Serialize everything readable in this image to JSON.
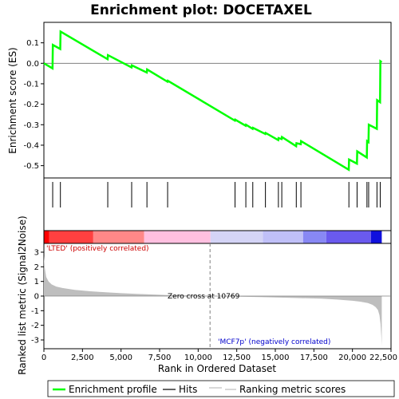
{
  "chart_data": {
    "type": "line",
    "title": "Enrichment plot: DOCETAXEL",
    "xlabel": "Rank in Ordered Dataset",
    "ylabel_top": "Enrichment score (ES)",
    "ylabel_bottom": "Ranked list metric (Signal2Noise)",
    "xlim": [
      0,
      22500
    ],
    "x_ticks": [
      0,
      2500,
      5000,
      7500,
      10000,
      12500,
      15000,
      17500,
      20000,
      22500
    ],
    "x_tick_labels": [
      "0",
      "2,500",
      "5,000",
      "7,500",
      "10,000",
      "12,500",
      "15,000",
      "17,500",
      "20,000",
      "22,500"
    ],
    "es_ylim": [
      -0.56,
      0.2
    ],
    "es_ticks": [
      -0.5,
      -0.4,
      -0.3,
      -0.2,
      -0.1,
      0.0,
      0.1
    ],
    "es_tick_labels": [
      "-0.5",
      "-0.4",
      "-0.3",
      "-0.2",
      "-0.1",
      "0.0",
      "0.1"
    ],
    "metric_ylim": [
      -3.6,
      3.6
    ],
    "metric_ticks": [
      -3,
      -2,
      -1,
      0,
      1,
      2,
      3
    ],
    "metric_tick_labels": [
      "-3",
      "-2",
      "-1",
      "0",
      "1",
      "2",
      "3"
    ],
    "series": [
      {
        "name": "Enrichment profile",
        "color": "#00ff00",
        "x": [
          0,
          560,
          580,
          1060,
          1080,
          4130,
          4150,
          5680,
          5700,
          6670,
          6690,
          8010,
          8030,
          12380,
          12400,
          13080,
          13100,
          13530,
          13550,
          14350,
          14370,
          15190,
          15210,
          15410,
          15430,
          16350,
          16370,
          16650,
          16670,
          19760,
          19780,
          20290,
          20310,
          20930,
          20950,
          21040,
          21060,
          21580,
          21600,
          21790,
          21810,
          21900
        ],
        "y": [
          0.0,
          -0.025,
          0.09,
          0.07,
          0.155,
          0.02,
          0.04,
          -0.02,
          -0.01,
          -0.045,
          -0.03,
          -0.09,
          -0.085,
          -0.28,
          -0.275,
          -0.305,
          -0.3,
          -0.32,
          -0.315,
          -0.345,
          -0.34,
          -0.375,
          -0.365,
          -0.37,
          -0.36,
          -0.405,
          -0.39,
          -0.395,
          -0.38,
          -0.52,
          -0.47,
          -0.49,
          -0.43,
          -0.46,
          -0.38,
          -0.385,
          -0.3,
          -0.32,
          -0.18,
          -0.19,
          0.01,
          0.005
        ]
      },
      {
        "name": "Hits",
        "color": "#000000",
        "hits": [
          570,
          1070,
          4140,
          5690,
          6680,
          8020,
          12390,
          13090,
          13540,
          14360,
          15200,
          15420,
          16360,
          16660,
          19770,
          20300,
          20940,
          21050,
          21590,
          21800
        ]
      },
      {
        "name": "Ranking metric scores",
        "color": "#bebebe",
        "x": [
          0,
          60,
          150,
          300,
          500,
          800,
          1200,
          2000,
          3000,
          4000,
          5000,
          6000,
          7000,
          8000,
          9000,
          10000,
          10769,
          12000,
          14000,
          16000,
          18000,
          19000,
          20000,
          20500,
          21000,
          21300,
          21500,
          21650,
          21750,
          21820,
          21870,
          21900
        ],
        "values": [
          2.75,
          1.9,
          1.3,
          1.0,
          0.8,
          0.65,
          0.55,
          0.42,
          0.33,
          0.26,
          0.2,
          0.15,
          0.11,
          0.07,
          0.04,
          0.015,
          0.0,
          -0.03,
          -0.07,
          -0.12,
          -0.18,
          -0.24,
          -0.32,
          -0.38,
          -0.48,
          -0.6,
          -0.75,
          -0.95,
          -1.3,
          -1.9,
          -2.7,
          -3.4
        ]
      }
    ],
    "annotations": {
      "zero_cross": "Zero cross at 10769",
      "zero_cross_rank": 10769,
      "pos_label": "'LTED' (positively correlated)",
      "neg_label": "'MCF7p' (negatively correlated)"
    },
    "legend_position": "bottom",
    "colors": {
      "es_line": "#00ff00",
      "pos_label": "#cc0000",
      "neg_label": "#0000cc",
      "metric_fill": "#bebebe",
      "zero_line": "#808080",
      "cross_line": "#808080"
    },
    "rank_bar_segments": [
      {
        "x0": 0,
        "x1": 350,
        "color": "#ff0000"
      },
      {
        "x0": 350,
        "x1": 3200,
        "color": "#ff4040"
      },
      {
        "x0": 3200,
        "x1": 6500,
        "color": "#ff8888"
      },
      {
        "x0": 6500,
        "x1": 10800,
        "color": "#ffc0e0"
      },
      {
        "x0": 10800,
        "x1": 14200,
        "color": "#d4d4f6"
      },
      {
        "x0": 14200,
        "x1": 16800,
        "color": "#c0c0f8"
      },
      {
        "x0": 16800,
        "x1": 18300,
        "color": "#8888f4"
      },
      {
        "x0": 18300,
        "x1": 21200,
        "color": "#6a5aee"
      },
      {
        "x0": 21200,
        "x1": 21900,
        "color": "#1010dd"
      }
    ]
  }
}
